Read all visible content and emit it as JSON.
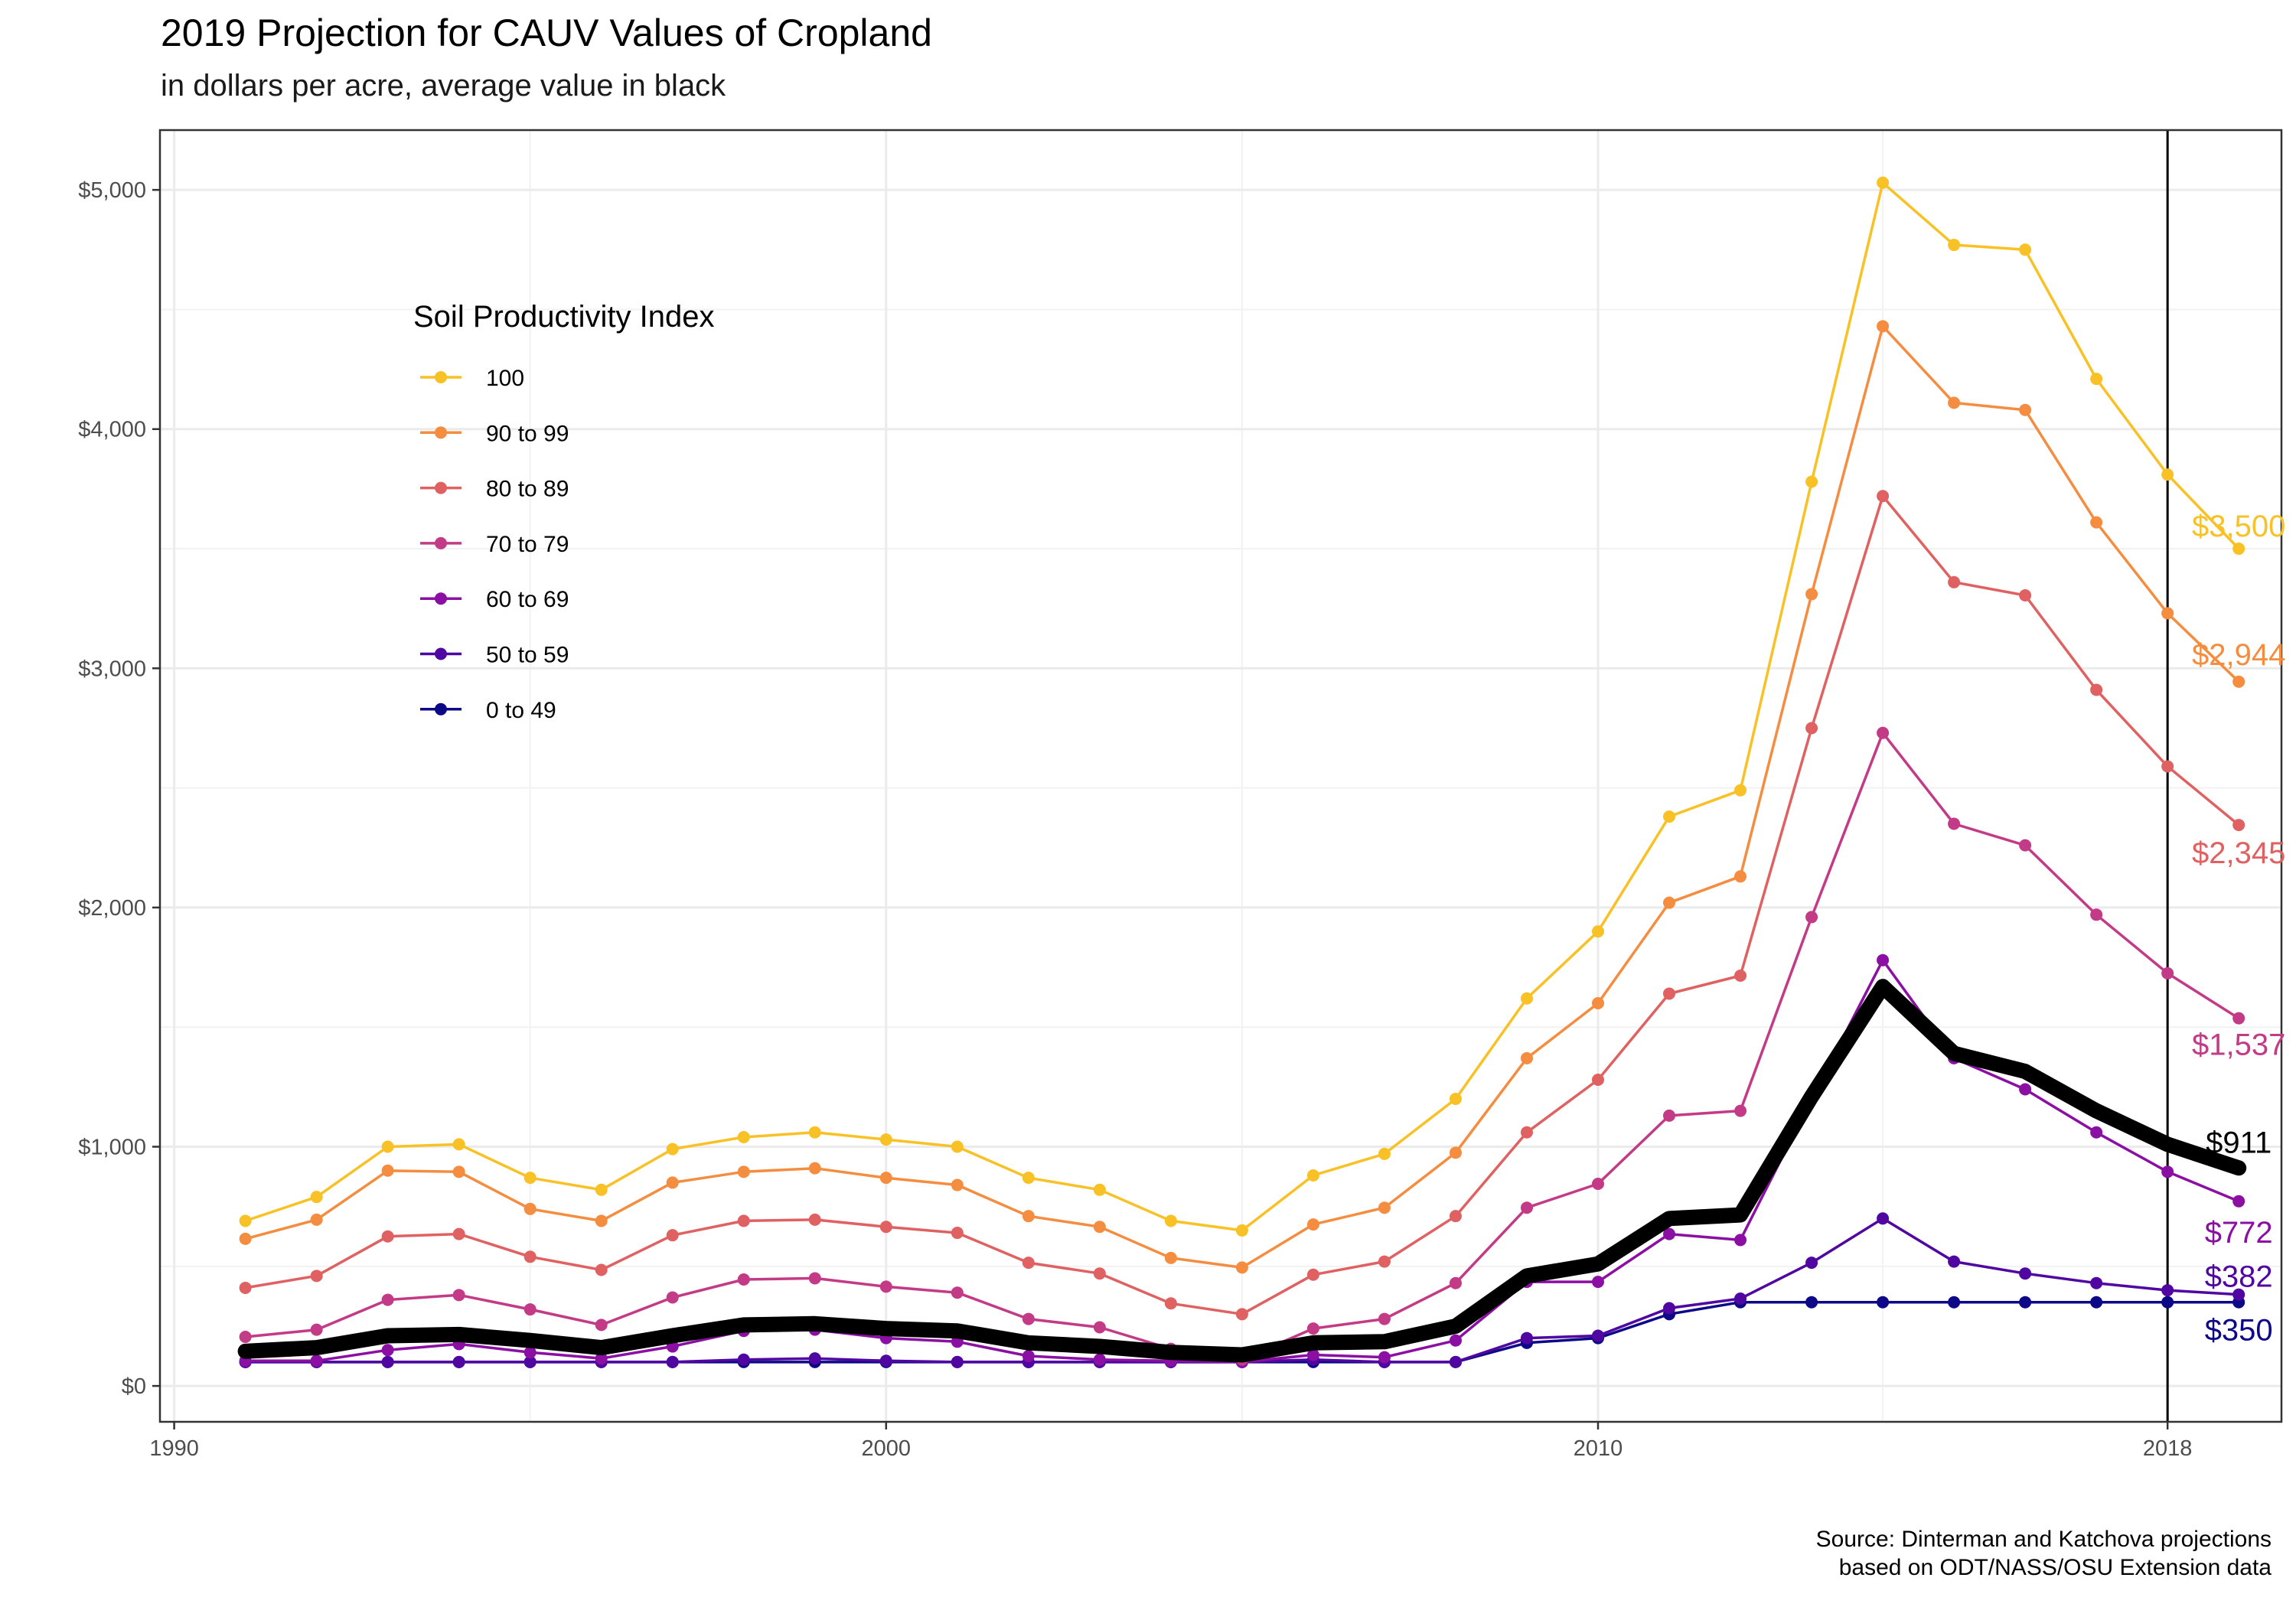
{
  "chart_data": {
    "type": "line",
    "title": "2019 Projection for CAUV Values of Cropland",
    "subtitle": "in dollars per acre, average value in black",
    "caption": [
      "Source: Dinterman and Katchova projections",
      "based on ODT/NASS/OSU Extension data"
    ],
    "legend": {
      "title": "Soil Productivity Index",
      "placement": "top-left"
    },
    "x": [
      1991,
      1992,
      1993,
      1994,
      1995,
      1996,
      1997,
      1998,
      1999,
      2000,
      2001,
      2002,
      2003,
      2004,
      2005,
      2006,
      2007,
      2008,
      2009,
      2010,
      2011,
      2012,
      2013,
      2014,
      2015,
      2016,
      2017,
      2018,
      2019
    ],
    "xlim": [
      1989.8,
      2019.6
    ],
    "ylim": [
      -150,
      5250
    ],
    "x_ticks": [
      {
        "value": 1990,
        "label": "1990"
      },
      {
        "value": 2000,
        "label": "2000"
      },
      {
        "value": 2010,
        "label": "2010"
      },
      {
        "value": 2018,
        "label": "2018"
      }
    ],
    "y_ticks": [
      {
        "value": 0,
        "label": "$0"
      },
      {
        "value": 1000,
        "label": "$1,000"
      },
      {
        "value": 2000,
        "label": "$2,000"
      },
      {
        "value": 3000,
        "label": "$3,000"
      },
      {
        "value": 4000,
        "label": "$4,000"
      },
      {
        "value": 5000,
        "label": "$5,000"
      }
    ],
    "y_minor_ticks": [
      500,
      1500,
      2500,
      3500,
      4500
    ],
    "x_minor_ticks": [
      1995,
      2005,
      2014
    ],
    "grid": true,
    "vline": 2018,
    "series": [
      {
        "name": "100",
        "color": "#F8C125",
        "end_label": "$3,500",
        "values": [
          690,
          790,
          1000,
          1010,
          870,
          820,
          990,
          1040,
          1060,
          1030,
          1000,
          870,
          820,
          690,
          650,
          880,
          970,
          1200,
          1620,
          1900,
          2380,
          2490,
          3780,
          5030,
          4770,
          4750,
          4210,
          3810,
          3500
        ]
      },
      {
        "name": "90 to 99",
        "color": "#F48D40",
        "end_label": "$2,944",
        "values": [
          615,
          695,
          900,
          895,
          740,
          690,
          850,
          895,
          910,
          870,
          840,
          710,
          665,
          535,
          495,
          675,
          745,
          975,
          1370,
          1600,
          2020,
          2130,
          3310,
          4430,
          4110,
          4080,
          3610,
          3230,
          2944
        ]
      },
      {
        "name": "80 to 89",
        "color": "#E06161",
        "end_label": "$2,345",
        "values": [
          410,
          460,
          625,
          635,
          540,
          485,
          630,
          690,
          695,
          665,
          640,
          515,
          470,
          345,
          300,
          465,
          520,
          710,
          1060,
          1280,
          1640,
          1715,
          2750,
          3720,
          3360,
          3305,
          2910,
          2590,
          2345
        ]
      },
      {
        "name": "70 to 79",
        "color": "#C33A86",
        "end_label": "$1,537",
        "values": [
          205,
          235,
          360,
          380,
          320,
          255,
          370,
          445,
          450,
          415,
          390,
          280,
          245,
          155,
          110,
          240,
          280,
          430,
          745,
          845,
          1130,
          1150,
          1960,
          2730,
          2350,
          2260,
          1970,
          1725,
          1537
        ]
      },
      {
        "name": "60 to 69",
        "color": "#8C0FA4",
        "end_label": "$772",
        "values": [
          105,
          105,
          150,
          175,
          140,
          115,
          165,
          230,
          235,
          200,
          185,
          125,
          110,
          105,
          100,
          130,
          120,
          190,
          435,
          435,
          635,
          610,
          1200,
          1780,
          1370,
          1240,
          1060,
          895,
          772
        ]
      },
      {
        "name": "50 to 59",
        "color": "#5006A1",
        "end_label": "$382",
        "values": [
          100,
          100,
          100,
          100,
          100,
          100,
          100,
          110,
          115,
          105,
          100,
          100,
          100,
          100,
          100,
          110,
          100,
          100,
          200,
          210,
          325,
          365,
          515,
          700,
          520,
          470,
          430,
          400,
          382
        ]
      },
      {
        "name": "0 to 49",
        "color": "#0D0887",
        "end_label": "$350",
        "values": [
          100,
          100,
          100,
          100,
          100,
          100,
          100,
          100,
          100,
          100,
          100,
          100,
          100,
          100,
          100,
          100,
          100,
          100,
          180,
          200,
          300,
          350,
          350,
          350,
          350,
          350,
          350,
          350,
          350
        ]
      }
    ],
    "average": {
      "color": "#000000",
      "end_label": "$911",
      "values": [
        145,
        160,
        210,
        215,
        190,
        160,
        210,
        255,
        260,
        240,
        230,
        180,
        165,
        140,
        130,
        180,
        185,
        250,
        460,
        510,
        700,
        715,
        1210,
        1670,
        1390,
        1315,
        1150,
        1010,
        911
      ]
    }
  }
}
